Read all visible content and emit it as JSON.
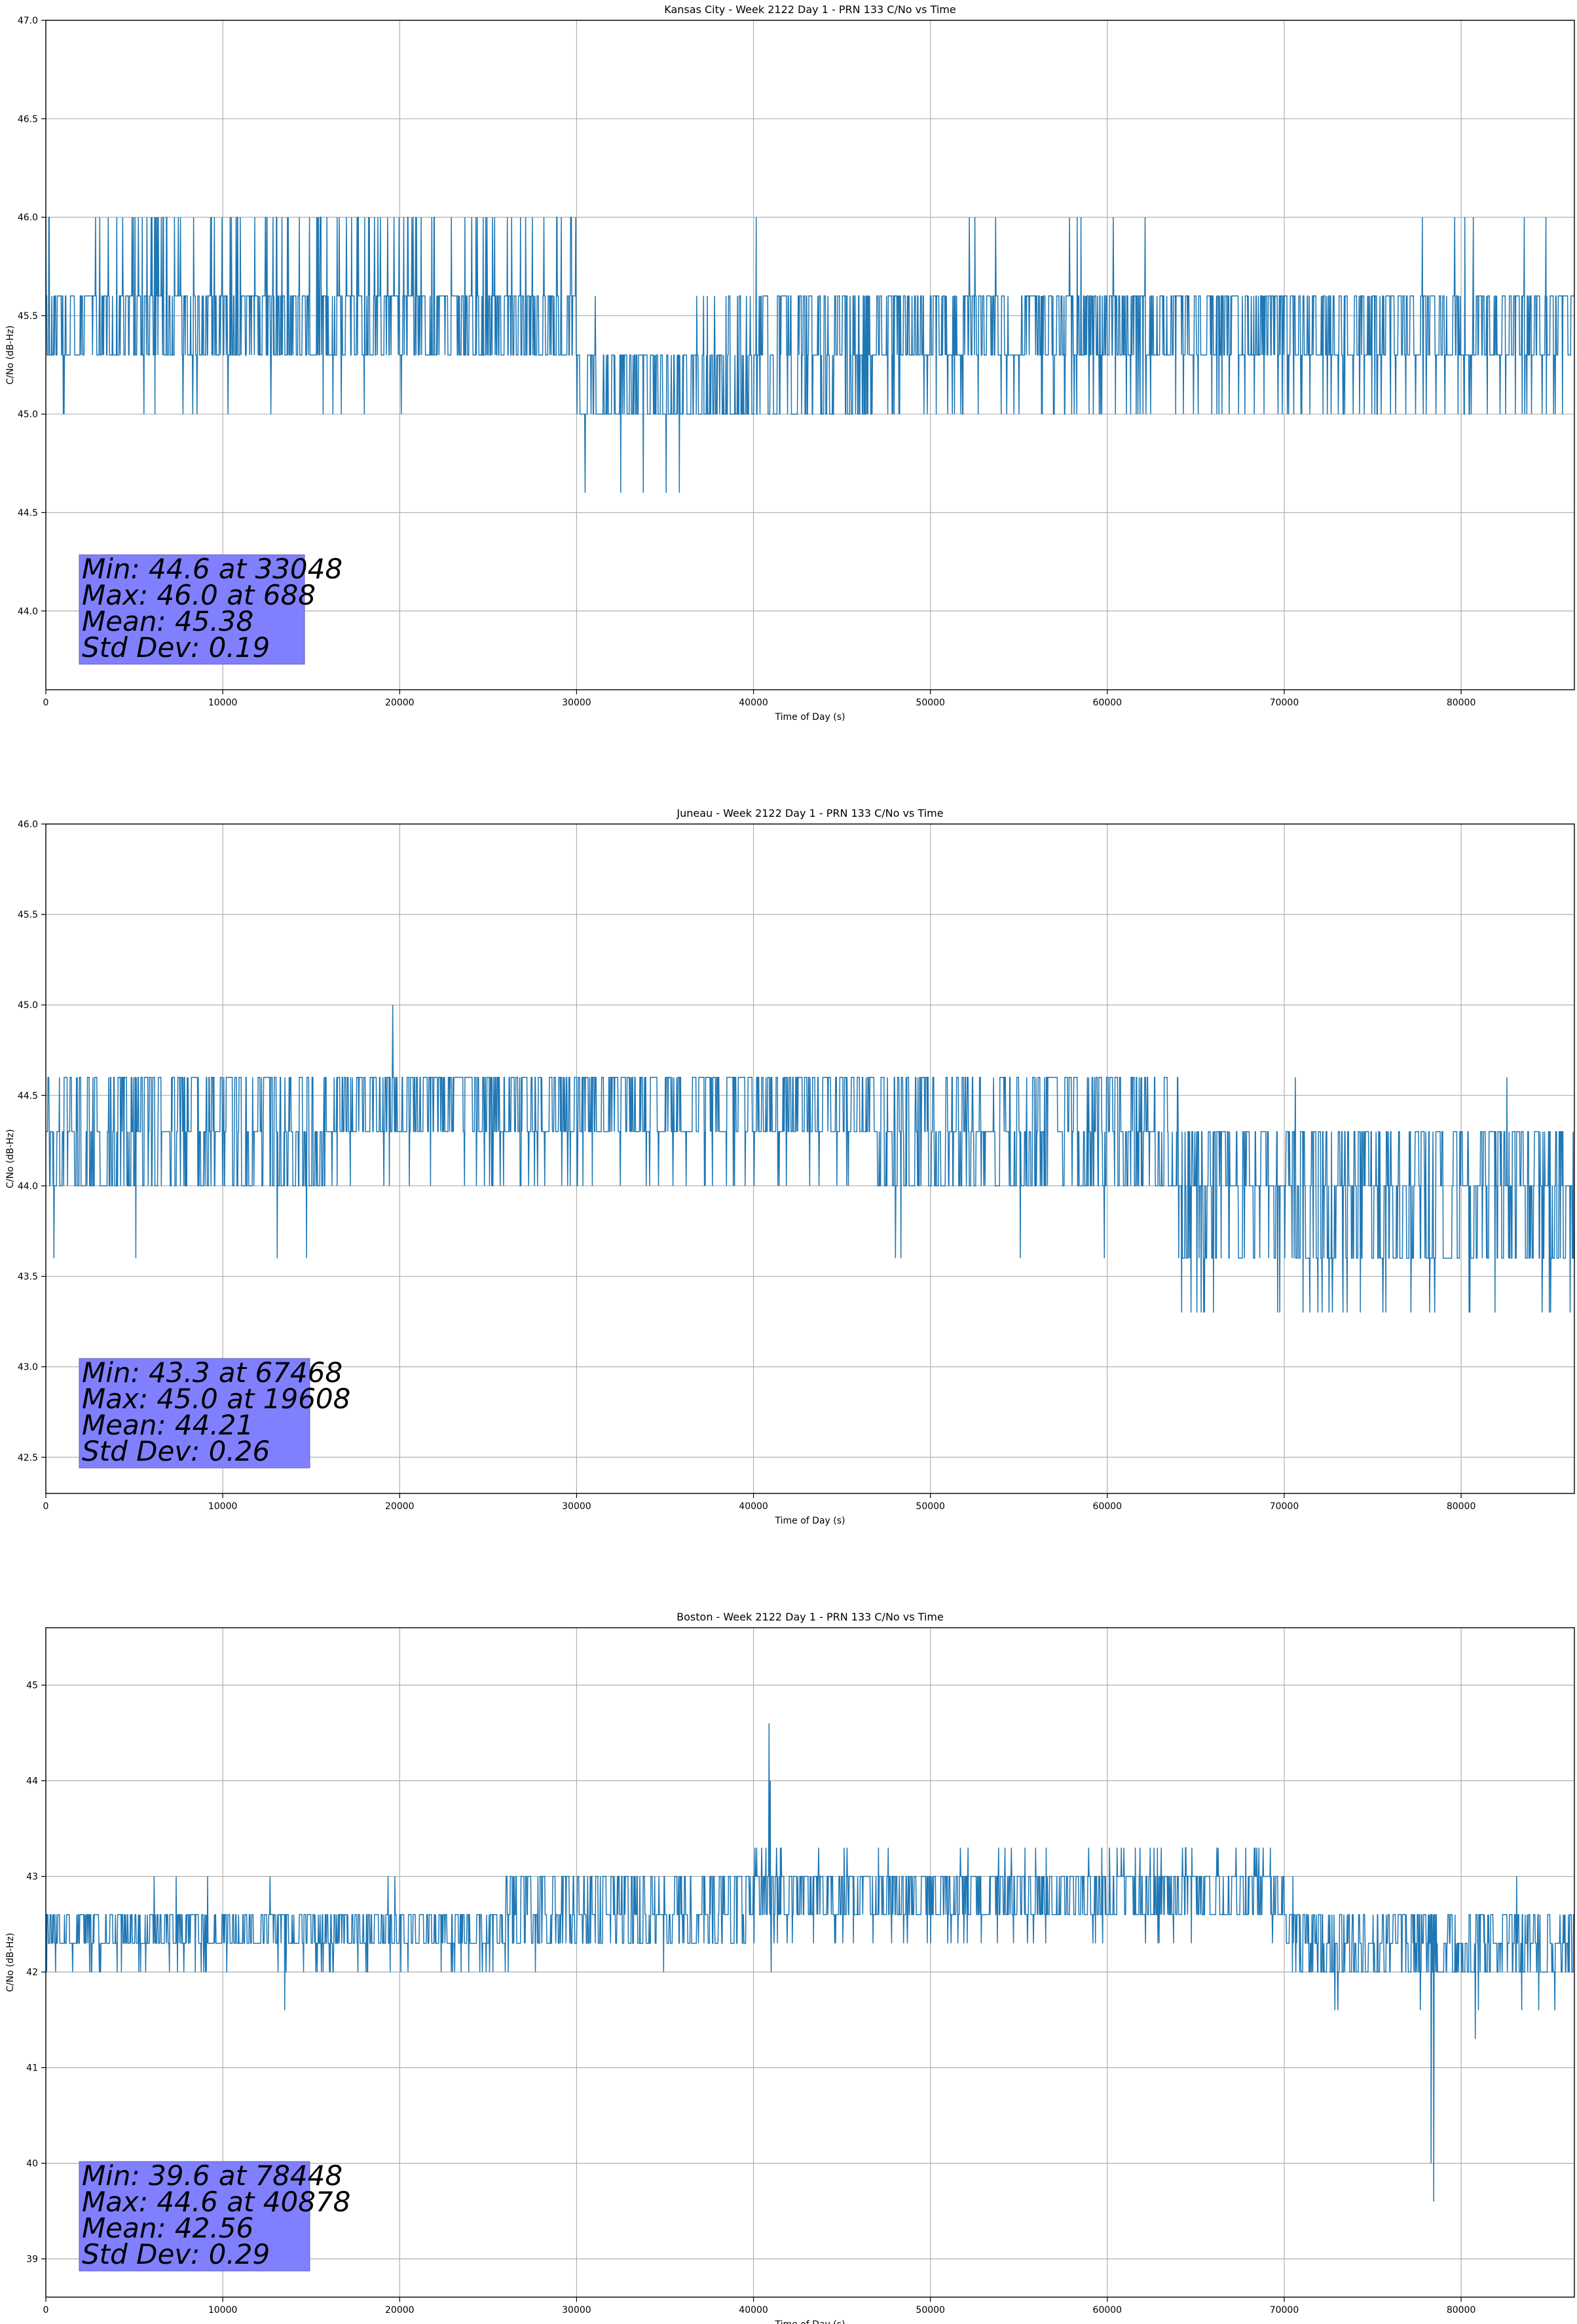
{
  "chart_data": [
    {
      "type": "line",
      "title": "Kansas City - Week 2122 Day 1 - PRN 133 C/No vs Time",
      "xlabel": "Time of Day (s)",
      "ylabel": "C/No (dB-Hz)",
      "xlim": [
        0,
        86400
      ],
      "ylim": [
        43.6,
        47.0
      ],
      "xticks": [
        0,
        10000,
        20000,
        30000,
        40000,
        50000,
        60000,
        70000,
        80000
      ],
      "yticks": [
        44.0,
        44.5,
        45.0,
        45.5,
        46.0,
        46.5,
        47.0
      ],
      "ytick_decimals": 1,
      "grid": true,
      "series_color": "#1f77b4",
      "levels": [
        44.6,
        45.0,
        45.3,
        45.6,
        46.0
      ],
      "segments": [
        {
          "start": 0,
          "end": 30000,
          "base": [
            45.3,
            45.6
          ],
          "excursions": [
            [
              46.0,
              0.09
            ],
            [
              45.0,
              0.015
            ]
          ]
        },
        {
          "start": 30000,
          "end": 38500,
          "base": [
            45.0,
            45.3
          ],
          "excursions": [
            [
              44.6,
              0.02
            ],
            [
              45.6,
              0.01
            ]
          ]
        },
        {
          "start": 38500,
          "end": 47000,
          "base": [
            45.0,
            45.3,
            45.6
          ],
          "excursions": [
            [
              46.0,
              0.005
            ]
          ]
        },
        {
          "start": 47000,
          "end": 86400,
          "base": [
            45.3,
            45.6
          ],
          "excursions": [
            [
              45.0,
              0.06
            ],
            [
              46.0,
              0.012
            ]
          ]
        }
      ],
      "stats": {
        "lines": [
          "Min: 44.6 at 33048",
          "Max: 46.0 at 688",
          "Mean: 45.38",
          "Std Dev: 0.19"
        ],
        "box_color": "#8080ff"
      }
    },
    {
      "type": "line",
      "title": "Juneau - Week 2122 Day 1 - PRN 133 C/No vs Time",
      "xlabel": "Time of Day (s)",
      "ylabel": "C/No (dB-Hz)",
      "xlim": [
        0,
        86400
      ],
      "ylim": [
        42.3,
        46.0
      ],
      "xticks": [
        0,
        10000,
        20000,
        30000,
        40000,
        50000,
        60000,
        70000,
        80000
      ],
      "yticks": [
        42.5,
        43.0,
        43.5,
        44.0,
        44.5,
        45.0,
        45.5,
        46.0
      ],
      "ytick_decimals": 1,
      "grid": true,
      "series_color": "#1f77b4",
      "levels": [
        43.3,
        43.6,
        44.0,
        44.3,
        44.6,
        45.0
      ],
      "segments": [
        {
          "start": 0,
          "end": 16000,
          "base": [
            44.0,
            44.3,
            44.6
          ],
          "excursions": [
            [
              43.6,
              0.004
            ]
          ]
        },
        {
          "start": 16000,
          "end": 30000,
          "base": [
            44.3,
            44.6
          ],
          "excursions": [
            [
              44.0,
              0.04
            ]
          ]
        },
        {
          "start": 30000,
          "end": 47000,
          "base": [
            44.3,
            44.6
          ],
          "excursions": [
            [
              44.0,
              0.03
            ]
          ]
        },
        {
          "start": 47000,
          "end": 64000,
          "base": [
            44.0,
            44.3,
            44.6
          ],
          "excursions": [
            [
              43.6,
              0.01
            ]
          ]
        },
        {
          "start": 64000,
          "end": 86400,
          "base": [
            43.6,
            44.0,
            44.3
          ],
          "excursions": [
            [
              43.3,
              0.03
            ],
            [
              44.6,
              0.005
            ]
          ]
        }
      ],
      "spikes": [
        {
          "x": 19608,
          "y": 45.0
        }
      ],
      "stats": {
        "lines": [
          "Min: 43.3 at 67468",
          "Max: 45.0 at 19608",
          "Mean: 44.21",
          "Std Dev: 0.26"
        ],
        "box_color": "#8080ff"
      }
    },
    {
      "type": "line",
      "title": "Boston - Week 2122 Day 1 - PRN 133 C/No vs Time",
      "xlabel": "Time of Day (s)",
      "ylabel": "C/No (dB-Hz)",
      "xlim": [
        0,
        86400
      ],
      "ylim": [
        38.6,
        45.6
      ],
      "xticks": [
        0,
        10000,
        20000,
        30000,
        40000,
        50000,
        60000,
        70000,
        80000
      ],
      "yticks": [
        39,
        40,
        41,
        42,
        43,
        44,
        45
      ],
      "ytick_decimals": 0,
      "grid": true,
      "series_color": "#1f77b4",
      "levels": [
        39.6,
        40.0,
        41.3,
        41.6,
        42.0,
        42.3,
        42.6,
        43.0,
        43.3,
        44.0,
        44.6
      ],
      "segments": [
        {
          "start": 0,
          "end": 26000,
          "base": [
            42.3,
            42.6
          ],
          "excursions": [
            [
              42.0,
              0.04
            ],
            [
              43.0,
              0.006
            ]
          ]
        },
        {
          "start": 26000,
          "end": 40000,
          "base": [
            42.3,
            42.6,
            43.0
          ],
          "excursions": [
            [
              42.0,
              0.004
            ]
          ]
        },
        {
          "start": 40000,
          "end": 70000,
          "base": [
            42.6,
            43.0
          ],
          "excursions": [
            [
              43.3,
              0.05
            ],
            [
              42.3,
              0.03
            ]
          ]
        },
        {
          "start": 70000,
          "end": 86400,
          "base": [
            42.0,
            42.3,
            42.6
          ],
          "excursions": [
            [
              41.6,
              0.006
            ],
            [
              43.0,
              0.004
            ]
          ]
        }
      ],
      "spikes": [
        {
          "x": 40878,
          "y": 44.6
        },
        {
          "x": 40950,
          "y": 44.0
        },
        {
          "x": 41000,
          "y": 42.0
        },
        {
          "x": 78300,
          "y": 40.0
        },
        {
          "x": 78448,
          "y": 39.6
        },
        {
          "x": 80800,
          "y": 41.3
        },
        {
          "x": 13500,
          "y": 41.6
        }
      ],
      "stats": {
        "lines": [
          "Min: 39.6 at 78448",
          "Max: 44.6 at 40878",
          "Mean: 42.56",
          "Std Dev: 0.29"
        ],
        "box_color": "#8080ff"
      }
    }
  ]
}
